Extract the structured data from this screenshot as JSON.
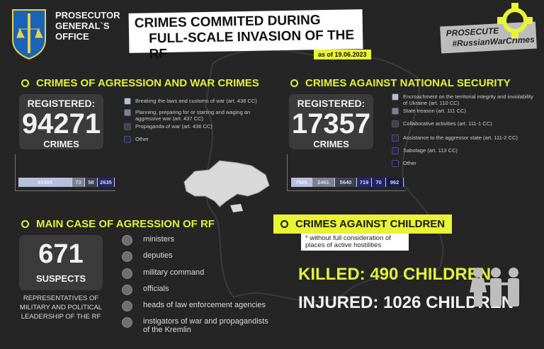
{
  "header": {
    "org": [
      "PROSECUTOR",
      "GENERAL`S",
      "OFFICE"
    ],
    "title_line1": "CRIMES COMMITED DURING",
    "title_line2": "FULL-SCALE INVASION OF THE RF",
    "date": "as of 19.06.2023",
    "campaign_line1": "PROSECUTE",
    "campaign_line2": "#RussianWarCrimes"
  },
  "colors": {
    "accent": "#e3f03a",
    "background": "#252525"
  },
  "war_crimes": {
    "title": "CRIMES OF AGRESSION AND WAR CRIMES",
    "registered_label": "REGISTERED:",
    "total": "94271",
    "unit": "CRIMES",
    "legend": [
      {
        "label": "Breaking the laws and customs of war (art. 438 CC)",
        "color": "#b5c0df"
      },
      {
        "label": "Planning, preparing for or starting and waging an aggressive war (art. 437 CC)",
        "color": "#7c8293"
      },
      {
        "label": "Propaganda of war (art. 436 CC)",
        "color": "#3d4255"
      },
      {
        "label": "Other",
        "color": "#23286e"
      }
    ],
    "bar": [
      "91505",
      "73",
      "58",
      "2635"
    ]
  },
  "national_security": {
    "title": "CRIMES AGAINST NATIONAL SECURITY",
    "registered_label": "REGISTERED:",
    "total": "17357",
    "unit": "CRIMES",
    "legend": [
      {
        "label": "Encroachment on the territorial integrity and inviolability of Ukraine (art. 110 CC)",
        "color": "#b5c0df"
      },
      {
        "label": "State treason (art. 111 CC)",
        "color": "#7c8293"
      },
      {
        "label": "Collaborative activities (art. 111-1 CC)",
        "color": "#3d4255"
      },
      {
        "label": "Assistance to the aggressor state (art. 111-2 CC)",
        "color": "#23286e"
      },
      {
        "label": "Sabotage (art. 113 CC)",
        "color": "#1f2466"
      },
      {
        "label": "Other",
        "color": "#191b48"
      }
    ],
    "bar": [
      "7505",
      "2461",
      "5640",
      "719",
      "70",
      "962"
    ]
  },
  "main_case": {
    "title": "MAIN CASE OF AGRESSION OF RF",
    "total": "671",
    "unit": "SUSPECTS",
    "caption": "REPRESENTATIVES  OF MILITARY AND POLITICAL LEADERSHIP  OF THE RF",
    "categories": [
      "ministers",
      "deputies",
      "military command",
      "officials",
      "heads of law enforcement agencies",
      "instigators of war and propagandists of the Kremlin"
    ]
  },
  "children": {
    "title": "CRIMES AGAINST CHILDREN",
    "note": "* without full consideration of places of active hostilities",
    "killed": "KILLED: 490  CHILDREN",
    "injured": "INJURED: 1026 CHILDREN"
  }
}
